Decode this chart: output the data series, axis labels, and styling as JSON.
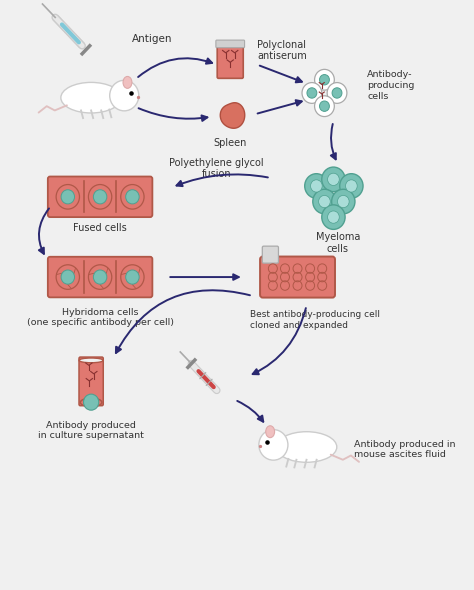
{
  "bg_color": "#f0f0f0",
  "arrow_color": "#2a2870",
  "cell_fill": "#e07870",
  "cell_border": "#b05848",
  "nucleus_fill": "#78c0b4",
  "nucleus_border": "#50a090",
  "white_cell_fill": "#ffffff",
  "white_cell_border": "#aaaaaa",
  "labels": {
    "antigen": "Antigen",
    "polyclonal": "Polyclonal\nantiserum",
    "spleen": "Spleen",
    "antibody_producing": "Antibody-\nproducing\ncells",
    "polyethylene": "Polyethylene glycol\nfusion",
    "fused_cells": "Fused cells",
    "myeloma": "Myeloma\ncells",
    "hybridoma": "Hybridoma cells\n(one specific antibody per cell)",
    "best_clone": "Best antibody-producing cell\ncloned and expanded",
    "culture": "Antibody produced\nin culture supernatant",
    "ascites": "Antibody produced in\nmouse ascites fluid"
  }
}
